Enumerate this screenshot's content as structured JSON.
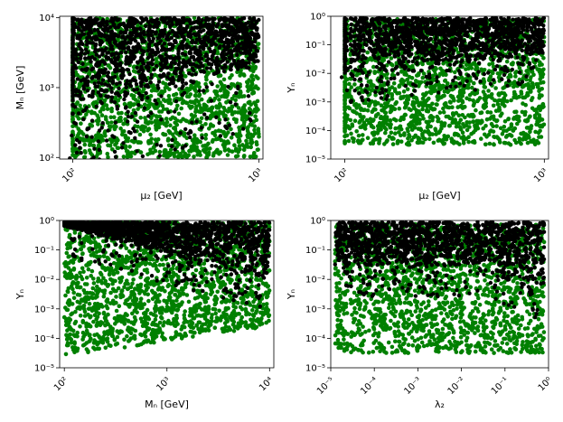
{
  "colors": {
    "green": "#008000",
    "black": "#000000"
  },
  "chart_data": [
    {
      "type": "scatter",
      "xlabel": "μ₂ [GeV]",
      "ylabel": "Mₙ [GeV]",
      "xscale": "log",
      "yscale": "log",
      "xlim": [
        85,
        1050
      ],
      "ylim": [
        95,
        10500
      ],
      "xticks": [
        {
          "v": 100,
          "label": "10²"
        },
        {
          "v": 1000,
          "label": "10³"
        }
      ],
      "yticks": [
        {
          "v": 100,
          "label": "10²"
        },
        {
          "v": 1000,
          "label": "10³"
        },
        {
          "v": 10000,
          "label": "10⁴"
        }
      ],
      "series": [
        {
          "color": "green",
          "description_points": [
            [
              100,
              100
            ],
            [
              1000,
              100
            ],
            [
              1000,
              10000
            ],
            [
              100,
              10000
            ]
          ]
        },
        {
          "color": "black",
          "boundary": [
            [
              100,
              400
            ],
            [
              200,
              600
            ],
            [
              400,
              900
            ],
            [
              700,
              1300
            ],
            [
              1000,
              2000
            ]
          ]
        }
      ]
    },
    {
      "type": "scatter",
      "xlabel": "μ₂ [GeV]",
      "ylabel": "Yₙ",
      "xscale": "log",
      "yscale": "log",
      "xlim": [
        85,
        1050
      ],
      "ylim": [
        1e-05,
        1
      ],
      "xticks": [
        {
          "v": 100,
          "label": "10²"
        },
        {
          "v": 1000,
          "label": "10³"
        }
      ],
      "yticks": [
        {
          "v": 1e-05,
          "label": "10⁻⁵"
        },
        {
          "v": 0.0001,
          "label": "10⁻⁴"
        },
        {
          "v": 0.001,
          "label": "10⁻³"
        },
        {
          "v": 0.01,
          "label": "10⁻²"
        },
        {
          "v": 0.1,
          "label": "10⁻¹"
        },
        {
          "v": 1,
          "label": "10⁰"
        }
      ],
      "series": [
        {
          "color": "green",
          "range_y": [
            3e-05,
            0.8
          ]
        },
        {
          "color": "black",
          "boundary": [
            [
              100,
              0.008
            ],
            [
              300,
              0.015
            ],
            [
              600,
              0.03
            ],
            [
              1000,
              0.05
            ]
          ]
        }
      ]
    },
    {
      "type": "scatter",
      "xlabel": "Mₙ [GeV]",
      "ylabel": "Yₙ",
      "xscale": "log",
      "yscale": "log",
      "xlim": [
        90,
        11000
      ],
      "ylim": [
        1e-05,
        1
      ],
      "xticks": [
        {
          "v": 100,
          "label": "10²"
        },
        {
          "v": 1000,
          "label": "10³"
        },
        {
          "v": 10000,
          "label": "10⁴"
        }
      ],
      "yticks": [
        {
          "v": 1e-05,
          "label": "10⁻⁵"
        },
        {
          "v": 0.0001,
          "label": "10⁻⁴"
        },
        {
          "v": 0.001,
          "label": "10⁻³"
        },
        {
          "v": 0.01,
          "label": "10⁻²"
        },
        {
          "v": 0.1,
          "label": "10⁻¹"
        },
        {
          "v": 1,
          "label": "10⁰"
        }
      ],
      "series": [
        {
          "color": "green",
          "lower_edge": [
            [
              100,
              3e-05
            ],
            [
              1000,
              8e-05
            ],
            [
              10000,
              0.0003
            ]
          ]
        },
        {
          "color": "black",
          "boundary": [
            [
              100,
              0.6
            ],
            [
              1000,
              0.05
            ],
            [
              10000,
              0.005
            ]
          ]
        }
      ]
    },
    {
      "type": "scatter",
      "xlabel": "λ₂",
      "ylabel": "Yₙ",
      "xscale": "log",
      "yscale": "log",
      "xlim": [
        1e-05,
        1
      ],
      "ylim": [
        1e-05,
        1
      ],
      "xticks": [
        {
          "v": 1e-05,
          "label": "10⁻⁵"
        },
        {
          "v": 0.0001,
          "label": "10⁻⁴"
        },
        {
          "v": 0.001,
          "label": "10⁻³"
        },
        {
          "v": 0.01,
          "label": "10⁻²"
        },
        {
          "v": 0.1,
          "label": "10⁻¹"
        },
        {
          "v": 1,
          "label": "10⁰"
        }
      ],
      "yticks": [
        {
          "v": 1e-05,
          "label": "10⁻⁵"
        },
        {
          "v": 0.0001,
          "label": "10⁻⁴"
        },
        {
          "v": 0.001,
          "label": "10⁻³"
        },
        {
          "v": 0.01,
          "label": "10⁻²"
        },
        {
          "v": 0.1,
          "label": "10⁻¹"
        },
        {
          "v": 1,
          "label": "10⁰"
        }
      ],
      "series": [
        {
          "color": "green",
          "range_y": [
            3e-05,
            0.8
          ]
        },
        {
          "color": "black",
          "boundary": [
            [
              1e-05,
              0.02
            ],
            [
              0.01,
              0.02
            ],
            [
              0.5,
              0.005
            ]
          ]
        }
      ]
    }
  ]
}
